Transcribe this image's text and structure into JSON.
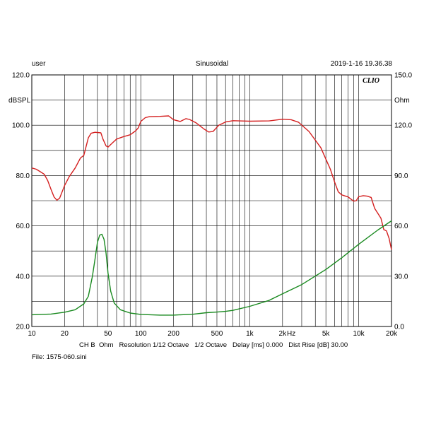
{
  "header": {
    "user": "user",
    "mode": "Sinusoidal",
    "datetime": "2019-1-16 19.36.38"
  },
  "brand": "CLIO",
  "footer": {
    "settings": "CH B  Ohm   Resolution 1/12 Octave   1/2 Octave   Delay [ms] 0.000   Dist Rise [dB] 30.00",
    "file": "File: 1575-060.sini"
  },
  "chart_data": {
    "type": "line",
    "xscale": "log",
    "xlim": [
      10,
      20000
    ],
    "x_ticks": [
      {
        "value": 10,
        "label": "10"
      },
      {
        "value": 20,
        "label": "20"
      },
      {
        "value": 50,
        "label": "50"
      },
      {
        "value": 100,
        "label": "100"
      },
      {
        "value": 200,
        "label": "200"
      },
      {
        "value": 500,
        "label": "500"
      },
      {
        "value": 1000,
        "label": "1k"
      },
      {
        "value": 2000,
        "label": "2k"
      },
      {
        "value": 5000,
        "label": "5k"
      },
      {
        "value": 10000,
        "label": "10k"
      },
      {
        "value": 20000,
        "label": "20k"
      }
    ],
    "x_unit_label": "Hz",
    "y_left": {
      "label": "dBSPL",
      "lim": [
        20,
        120
      ],
      "ticks": [
        "20.0",
        "40.0",
        "60.0",
        "80.0",
        "100.0",
        "120.0"
      ]
    },
    "y_right": {
      "label": "Ohm",
      "lim": [
        0,
        150
      ],
      "ticks": [
        "0.0",
        "30.0",
        "60.0",
        "90.0",
        "120.0",
        "150.0"
      ]
    },
    "grid": true,
    "series": [
      {
        "axis": "left",
        "color": "#d42020",
        "points": [
          [
            10,
            83
          ],
          [
            11,
            82.5
          ],
          [
            12,
            81.5
          ],
          [
            13,
            80.5
          ],
          [
            14,
            78
          ],
          [
            15,
            74.5
          ],
          [
            16,
            71.5
          ],
          [
            17,
            70.2
          ],
          [
            18,
            71
          ],
          [
            20,
            76
          ],
          [
            22,
            79.5
          ],
          [
            25,
            83
          ],
          [
            28,
            87
          ],
          [
            30,
            88
          ],
          [
            33,
            95
          ],
          [
            35,
            96.8
          ],
          [
            38,
            97.2
          ],
          [
            40,
            97.1
          ],
          [
            43,
            97
          ],
          [
            45,
            94.5
          ],
          [
            48,
            91.8
          ],
          [
            50,
            91.3
          ],
          [
            55,
            93
          ],
          [
            60,
            94.5
          ],
          [
            70,
            95.5
          ],
          [
            80,
            96.2
          ],
          [
            90,
            97.8
          ],
          [
            95,
            99
          ],
          [
            100,
            101.5
          ],
          [
            110,
            103
          ],
          [
            120,
            103.4
          ],
          [
            150,
            103.5
          ],
          [
            180,
            103.7
          ],
          [
            200,
            102.2
          ],
          [
            230,
            101.5
          ],
          [
            260,
            102.6
          ],
          [
            280,
            102.3
          ],
          [
            320,
            101
          ],
          [
            380,
            98.5
          ],
          [
            420,
            97.3
          ],
          [
            460,
            97.5
          ],
          [
            520,
            100
          ],
          [
            600,
            101.3
          ],
          [
            700,
            101.8
          ],
          [
            800,
            101.7
          ],
          [
            1000,
            101.6
          ],
          [
            1500,
            101.7
          ],
          [
            2000,
            102.4
          ],
          [
            2400,
            102.2
          ],
          [
            2800,
            101.2
          ],
          [
            3500,
            97.5
          ],
          [
            4500,
            91
          ],
          [
            5000,
            86.5
          ],
          [
            5500,
            82.5
          ],
          [
            6000,
            77.5
          ],
          [
            6500,
            73.5
          ],
          [
            7000,
            72.3
          ],
          [
            8000,
            71.5
          ],
          [
            9000,
            69.8
          ],
          [
            9500,
            70
          ],
          [
            10000,
            71.6
          ],
          [
            11000,
            72
          ],
          [
            12000,
            71.8
          ],
          [
            13000,
            71.3
          ],
          [
            14000,
            67
          ],
          [
            16000,
            63
          ],
          [
            17000,
            58.5
          ],
          [
            18000,
            58
          ],
          [
            19000,
            55
          ],
          [
            20000,
            50.5
          ]
        ]
      },
      {
        "axis": "right",
        "color": "#1a8a20",
        "points": [
          [
            10,
            7
          ],
          [
            15,
            7.4
          ],
          [
            20,
            8.5
          ],
          [
            25,
            10
          ],
          [
            30,
            13.5
          ],
          [
            33,
            18
          ],
          [
            36,
            30
          ],
          [
            38,
            40
          ],
          [
            40,
            50
          ],
          [
            42,
            54.5
          ],
          [
            44,
            55
          ],
          [
            46,
            52
          ],
          [
            48,
            44
          ],
          [
            50,
            32
          ],
          [
            53,
            21
          ],
          [
            57,
            14
          ],
          [
            65,
            10
          ],
          [
            80,
            8
          ],
          [
            100,
            7.2
          ],
          [
            150,
            6.8
          ],
          [
            200,
            6.8
          ],
          [
            300,
            7.3
          ],
          [
            400,
            8.2
          ],
          [
            500,
            8.6
          ],
          [
            600,
            9
          ],
          [
            700,
            9.6
          ],
          [
            1000,
            12
          ],
          [
            1500,
            15.5
          ],
          [
            2000,
            19.5
          ],
          [
            3000,
            25
          ],
          [
            5000,
            34
          ],
          [
            7000,
            41
          ],
          [
            10000,
            49
          ],
          [
            15000,
            57.5
          ],
          [
            20000,
            63
          ]
        ]
      }
    ]
  }
}
